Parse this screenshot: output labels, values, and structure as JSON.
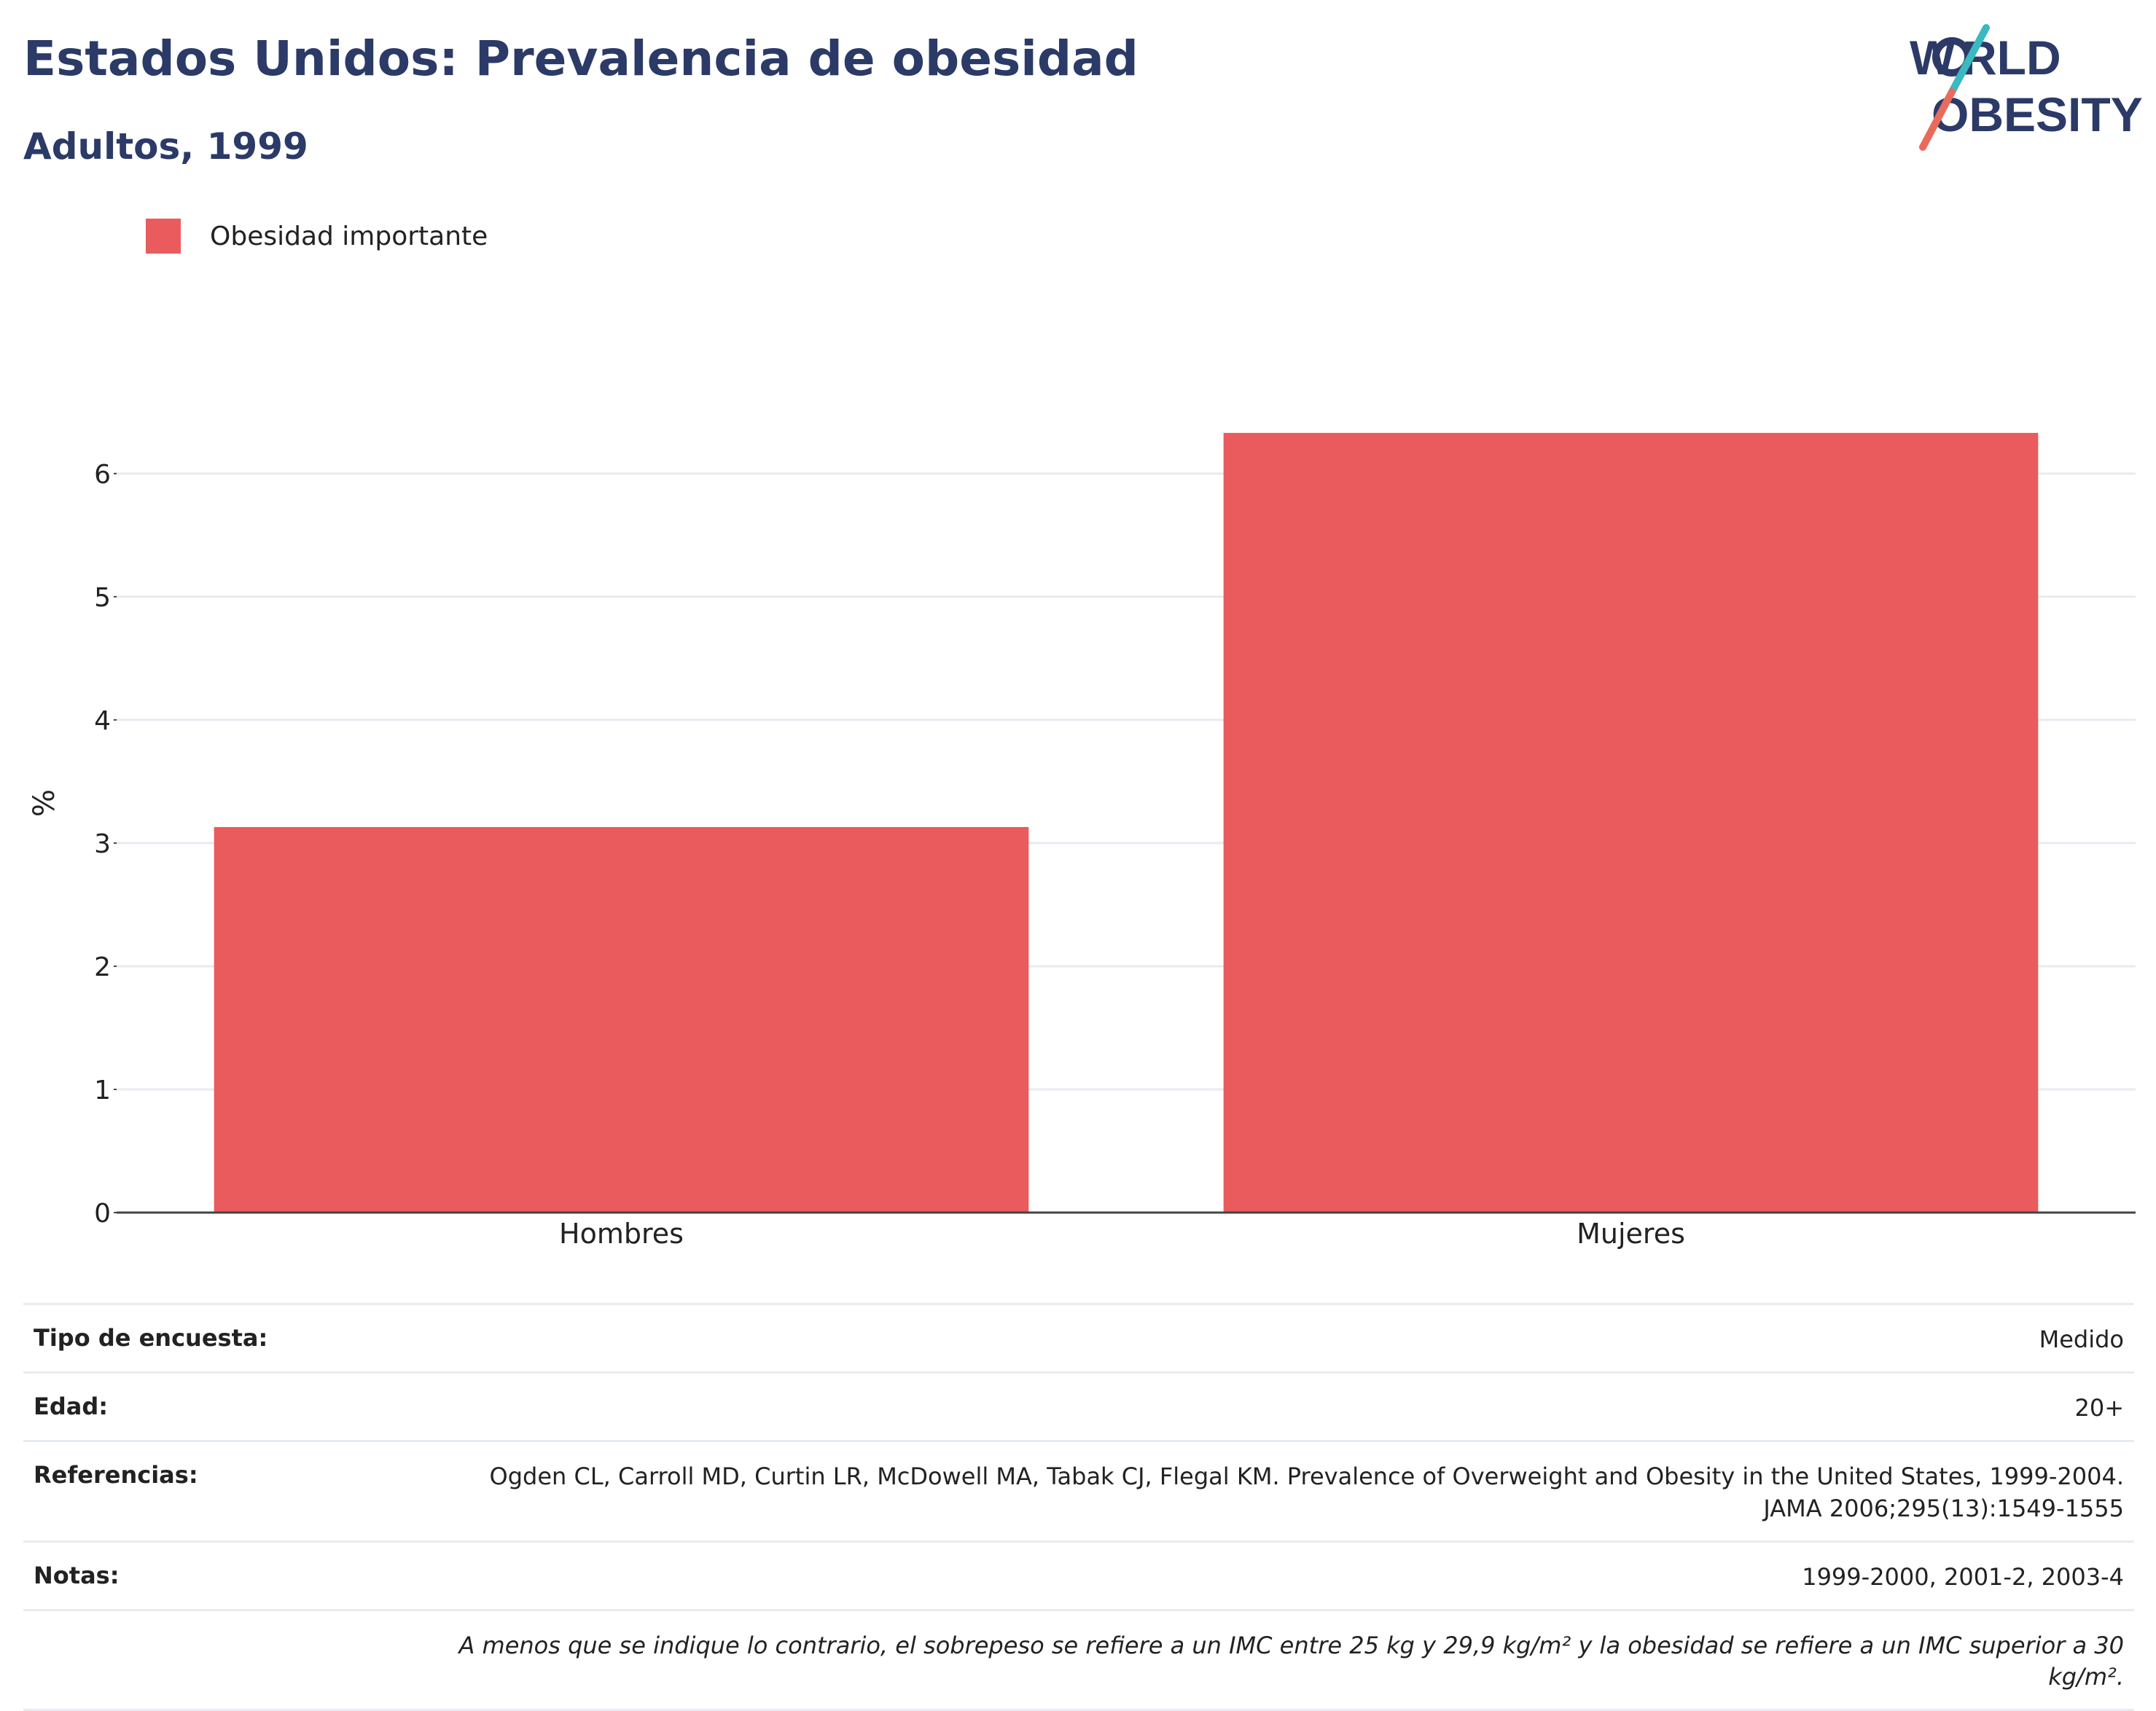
{
  "header": {
    "title": "Estados Unidos: Prevalencia de obesidad",
    "subtitle": "Adultos, 1999"
  },
  "logo": {
    "line1": "WORLD",
    "line2": "OBESITY",
    "accent_colors": [
      "#3bb8c0",
      "#e96b5c"
    ]
  },
  "legend": {
    "label": "Obesidad importante",
    "color": "#e95b5c"
  },
  "chart_data": {
    "type": "bar",
    "categories": [
      "Hombres",
      "Mujeres"
    ],
    "series": [
      {
        "name": "Obesidad importante",
        "values": [
          3.13,
          6.33
        ],
        "color": "#e95b5c"
      }
    ],
    "ylabel": "%",
    "xlabel": "",
    "ylim": [
      0,
      6.65
    ],
    "yticks": [
      0,
      1,
      2,
      3,
      4,
      5,
      6
    ],
    "grid": true,
    "legend_position": "top-left"
  },
  "meta": {
    "rows": [
      {
        "label": "Tipo de encuesta:",
        "value": "Medido"
      },
      {
        "label": "Edad:",
        "value": "20+"
      },
      {
        "label": "Referencias:",
        "value": "Ogden CL, Carroll MD, Curtin LR, McDowell MA, Tabak CJ, Flegal KM. Prevalence of Overweight and Obesity in the United States, 1999-2004. JAMA 2006;295(13):1549-1555"
      },
      {
        "label": "Notas:",
        "value": "1999-2000, 2001-2, 2003-4"
      }
    ],
    "footnote": "A menos que se indique lo contrario, el sobrepeso se refiere a un IMC entre 25 kg y 29,9 kg/m² y la obesidad se refiere a un IMC superior a 30 kg/m²."
  }
}
